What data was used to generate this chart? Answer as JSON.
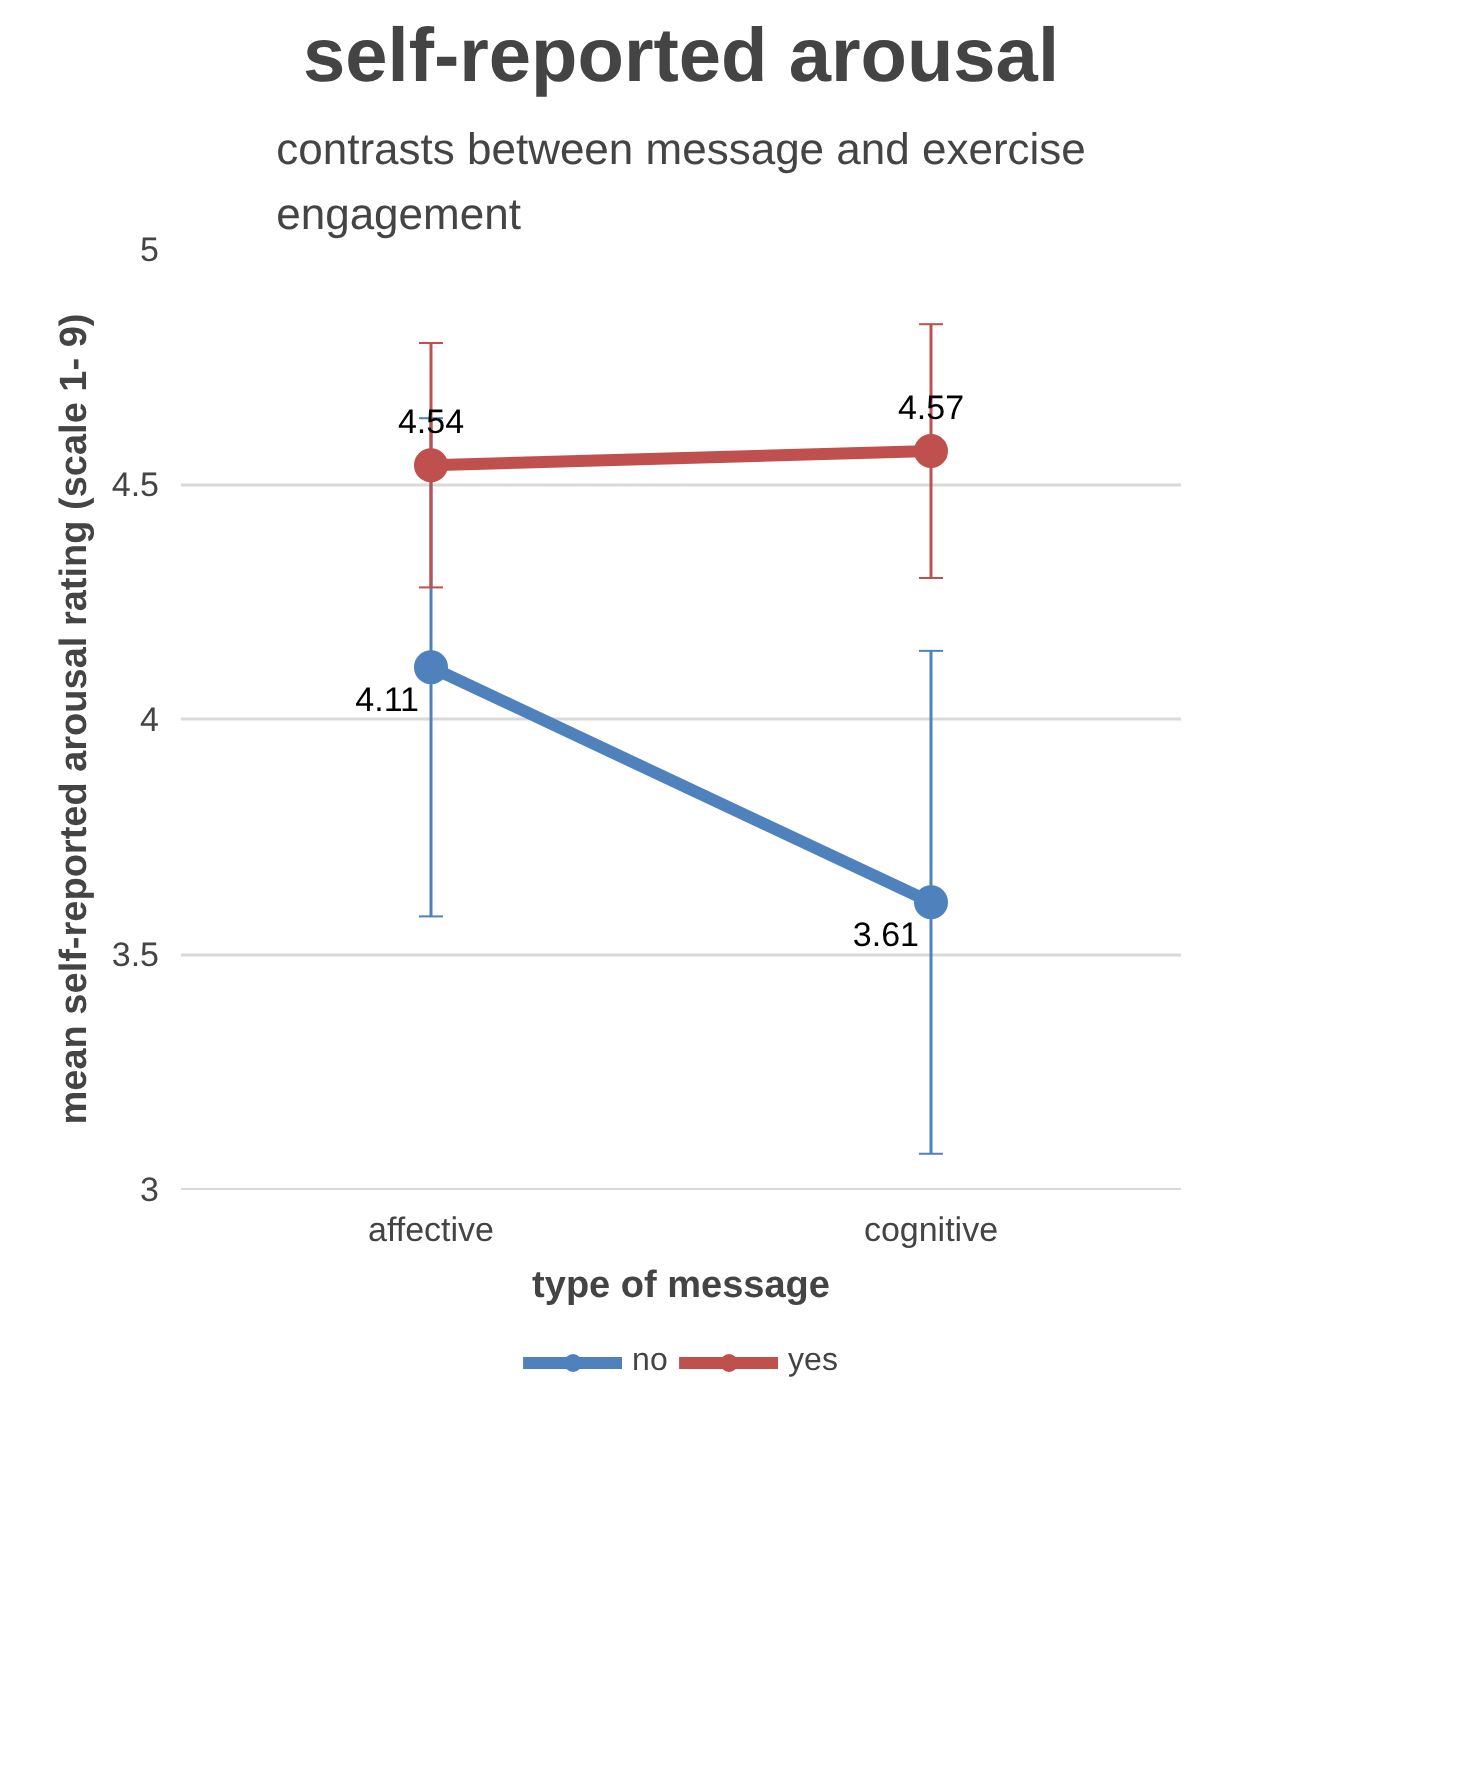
{
  "chart_data": {
    "type": "line",
    "title": "self-reported arousal",
    "subtitle": "contrasts between message and exercise\nengagement",
    "xlabel": "type of message",
    "ylabel": "mean self-reported arousal rating (scale 1- 9)",
    "categories": [
      "affective",
      "cognitive"
    ],
    "series": [
      {
        "name": "no",
        "color": "#4f81bd",
        "values": [
          4.11,
          3.61
        ],
        "errors": [
          0.53,
          0.535
        ]
      },
      {
        "name": "yes",
        "color": "#c0504d",
        "values": [
          4.54,
          4.57
        ],
        "errors": [
          0.26,
          0.27
        ]
      }
    ],
    "ylim": [
      3,
      5
    ],
    "yticks": [
      3,
      3.5,
      4,
      4.5,
      5
    ],
    "grid": "y",
    "legend": "bottom",
    "marker": "circle",
    "line_style": "solid",
    "data_labels": true
  }
}
